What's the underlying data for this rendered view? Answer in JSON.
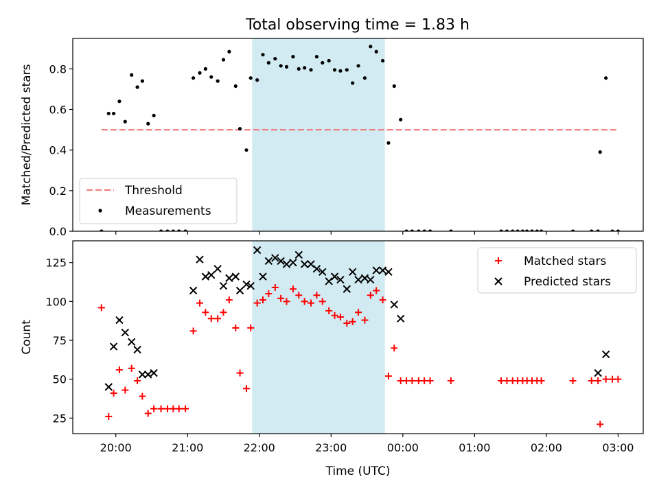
{
  "title": "Total observing time = 1.83 h",
  "chart_data": [
    {
      "type": "scatter",
      "ylabel": "Matched/Predicted stars",
      "xlabel": "",
      "ylim": [
        0,
        0.95
      ],
      "yticks": [
        0.0,
        0.2,
        0.4,
        0.6,
        0.8
      ],
      "yticklabels": [
        "0.0",
        "0.2",
        "0.4",
        "0.6",
        "0.8"
      ],
      "legend_position": "lower-left",
      "shaded_interval": {
        "start": 21.9,
        "end": 23.75,
        "color": "#add8e6"
      },
      "threshold": {
        "name": "Threshold",
        "y": 0.5,
        "x_start": 19.8,
        "x_end": 27.0,
        "color": "#f08080",
        "style": "dashed"
      },
      "series": [
        {
          "name": "Measurements",
          "color": "#000000",
          "marker": "dot",
          "x": [
            19.8,
            19.9,
            19.97,
            20.05,
            20.13,
            20.22,
            20.3,
            20.37,
            20.45,
            20.53,
            20.63,
            20.72,
            20.8,
            20.88,
            20.97,
            21.08,
            21.17,
            21.25,
            21.33,
            21.42,
            21.5,
            21.58,
            21.67,
            21.73,
            21.82,
            21.88,
            21.97,
            22.05,
            22.13,
            22.22,
            22.3,
            22.38,
            22.47,
            22.55,
            22.63,
            22.72,
            22.8,
            22.88,
            22.97,
            23.05,
            23.13,
            23.22,
            23.3,
            23.38,
            23.47,
            23.55,
            23.63,
            23.72,
            23.8,
            23.88,
            23.97,
            24.05,
            24.13,
            24.22,
            24.3,
            24.38,
            24.67,
            25.37,
            25.45,
            25.53,
            25.6,
            25.67,
            25.73,
            25.8,
            25.87,
            25.93,
            26.37,
            26.63,
            26.72,
            26.75,
            26.83,
            26.92,
            27.0
          ],
          "y": [
            0.0,
            0.58,
            0.58,
            0.64,
            0.54,
            0.77,
            0.71,
            0.74,
            0.53,
            0.57,
            0.0,
            0.0,
            0.0,
            0.0,
            0.0,
            0.755,
            0.78,
            0.8,
            0.76,
            0.74,
            0.845,
            0.885,
            0.715,
            0.505,
            0.4,
            0.755,
            0.745,
            0.87,
            0.83,
            0.85,
            0.815,
            0.81,
            0.86,
            0.8,
            0.805,
            0.795,
            0.86,
            0.83,
            0.84,
            0.795,
            0.79,
            0.795,
            0.73,
            0.815,
            0.755,
            0.91,
            0.885,
            0.84,
            0.435,
            0.715,
            0.55,
            0.0,
            0.0,
            0.0,
            0.0,
            0.0,
            0.0,
            0.0,
            0.0,
            0.0,
            0.0,
            0.0,
            0.0,
            0.0,
            0.0,
            0.0,
            0.0,
            0.0,
            0.0,
            0.39,
            0.755,
            0.0,
            0.0
          ]
        }
      ]
    },
    {
      "type": "scatter",
      "ylabel": "Count",
      "xlabel": "Time (UTC)",
      "ylim": [
        15,
        139
      ],
      "yticks": [
        25,
        50,
        75,
        100,
        125
      ],
      "yticklabels": [
        "25",
        "50",
        "75",
        "100",
        "125"
      ],
      "xlim": [
        19.4,
        27.35
      ],
      "xticks": [
        20,
        21,
        22,
        23,
        24,
        25,
        26,
        27
      ],
      "xticklabels": [
        "20:00",
        "21:00",
        "22:00",
        "23:00",
        "00:00",
        "01:00",
        "02:00",
        "03:00"
      ],
      "legend_position": "upper-right",
      "shaded_interval": {
        "start": 21.9,
        "end": 23.75,
        "color": "#add8e6"
      },
      "series": [
        {
          "name": "Matched stars",
          "color": "#ff0000",
          "marker": "plus",
          "x": [
            19.8,
            19.9,
            19.97,
            20.05,
            20.13,
            20.22,
            20.3,
            20.37,
            20.45,
            20.53,
            20.63,
            20.72,
            20.8,
            20.88,
            20.97,
            21.08,
            21.17,
            21.25,
            21.33,
            21.42,
            21.5,
            21.58,
            21.67,
            21.73,
            21.82,
            21.88,
            21.97,
            22.05,
            22.13,
            22.22,
            22.3,
            22.38,
            22.47,
            22.55,
            22.63,
            22.72,
            22.8,
            22.88,
            22.97,
            23.05,
            23.13,
            23.22,
            23.3,
            23.38,
            23.47,
            23.55,
            23.63,
            23.72,
            23.8,
            23.88,
            23.97,
            24.05,
            24.13,
            24.22,
            24.3,
            24.38,
            24.67,
            25.37,
            25.45,
            25.53,
            25.6,
            25.67,
            25.73,
            25.8,
            25.87,
            25.93,
            26.37,
            26.63,
            26.72,
            26.75,
            26.83,
            26.92,
            27.0
          ],
          "y": [
            96,
            26,
            41,
            56,
            43,
            57,
            49,
            39,
            28,
            31,
            31,
            31,
            31,
            31,
            31,
            81,
            99,
            93,
            89,
            89,
            93,
            101,
            83,
            54,
            44,
            83,
            99,
            101,
            105,
            109,
            102,
            100,
            108,
            104,
            100,
            99,
            104,
            100,
            94,
            91,
            90,
            86,
            87,
            93,
            88,
            104,
            107,
            101,
            52,
            70,
            49,
            49,
            49,
            49,
            49,
            49,
            49,
            49,
            49,
            49,
            49,
            49,
            49,
            49,
            49,
            49,
            49,
            49,
            49,
            21,
            50,
            50,
            50
          ]
        },
        {
          "name": "Predicted stars",
          "color": "#000000",
          "marker": "x",
          "x": [
            19.9,
            19.97,
            20.05,
            20.13,
            20.22,
            20.3,
            20.37,
            20.45,
            20.53,
            21.08,
            21.17,
            21.25,
            21.33,
            21.42,
            21.5,
            21.58,
            21.67,
            21.73,
            21.82,
            21.88,
            21.97,
            22.05,
            22.13,
            22.22,
            22.3,
            22.38,
            22.47,
            22.55,
            22.63,
            22.72,
            22.8,
            22.88,
            22.97,
            23.05,
            23.13,
            23.22,
            23.3,
            23.38,
            23.47,
            23.55,
            23.63,
            23.72,
            23.8,
            23.88,
            23.97,
            26.72,
            26.83
          ],
          "y": [
            45,
            71,
            88,
            80,
            74,
            69,
            53,
            53,
            54,
            107,
            127,
            116,
            117,
            121,
            110,
            115,
            116,
            107,
            111,
            110,
            133,
            116,
            126,
            128,
            126,
            124,
            125,
            130,
            124,
            124,
            121,
            119,
            113,
            116,
            114,
            108,
            119,
            114,
            115,
            114,
            120,
            120,
            119,
            98,
            89,
            54,
            66
          ]
        }
      ]
    }
  ]
}
